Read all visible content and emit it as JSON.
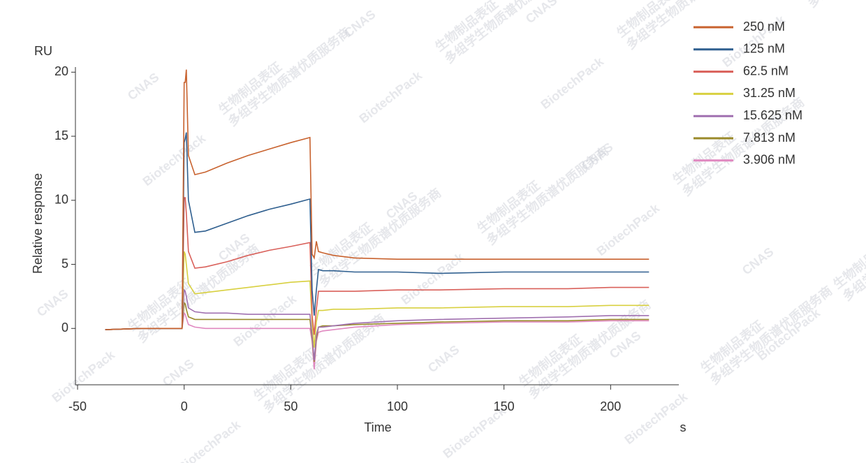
{
  "chart_data": {
    "type": "line",
    "y_unit": "RU",
    "ylabel": "Relative response",
    "xlabel": "Time",
    "x_unit": "s",
    "x": [
      -37,
      -20,
      -1,
      0,
      0.5,
      1,
      2,
      5,
      10,
      20,
      30,
      40,
      50,
      59,
      60,
      61,
      62,
      63,
      65,
      70,
      80,
      100,
      120,
      150,
      180,
      200,
      218
    ],
    "series": [
      {
        "name": "250 nM",
        "color": "#c8622e",
        "values": [
          -0.1,
          0,
          0,
          19.2,
          19.2,
          20.2,
          13.5,
          12.0,
          12.2,
          12.9,
          13.5,
          14.0,
          14.5,
          14.9,
          5.8,
          5.5,
          6.8,
          6.0,
          5.9,
          5.7,
          5.5,
          5.4,
          5.4,
          5.4,
          5.4,
          5.4,
          5.4
        ]
      },
      {
        "name": "125 nM",
        "color": "#2f5f8f",
        "values": [
          -0.1,
          0,
          0,
          14.5,
          14.8,
          15.3,
          10,
          7.5,
          7.6,
          8.2,
          8.8,
          9.3,
          9.7,
          10.1,
          3,
          1.0,
          3.0,
          4.6,
          4.5,
          4.5,
          4.4,
          4.4,
          4.3,
          4.4,
          4.4,
          4.4,
          4.4
        ]
      },
      {
        "name": "62.5 nM",
        "color": "#d9605a",
        "values": [
          -0.1,
          0,
          0,
          10.2,
          10.2,
          9,
          6,
          4.7,
          4.8,
          5.2,
          5.7,
          6.1,
          6.4,
          6.7,
          1,
          -0.5,
          1.5,
          2.9,
          2.9,
          2.9,
          2.9,
          3.0,
          3.0,
          3.1,
          3.1,
          3.2,
          3.2
        ]
      },
      {
        "name": "31.25 nM",
        "color": "#d8d040",
        "values": [
          -0.1,
          0,
          0,
          6,
          5.8,
          5,
          3.5,
          2.7,
          2.8,
          3.0,
          3.2,
          3.4,
          3.6,
          3.7,
          0.5,
          -1.5,
          0.5,
          1.4,
          1.4,
          1.5,
          1.5,
          1.6,
          1.6,
          1.7,
          1.7,
          1.8,
          1.8
        ]
      },
      {
        "name": "15.625 nM",
        "color": "#a070b0",
        "values": [
          -0.1,
          0,
          0,
          3,
          2.9,
          2.5,
          1.6,
          1.3,
          1.2,
          1.2,
          1.1,
          1.1,
          1.1,
          1.1,
          -0.5,
          -2.5,
          -0.5,
          0.1,
          0.1,
          0.2,
          0.4,
          0.6,
          0.7,
          0.8,
          0.9,
          1.0,
          1.0
        ]
      },
      {
        "name": "7.813 nM",
        "color": "#9a8a2a",
        "values": [
          -0.1,
          0,
          0,
          2,
          1.9,
          1.5,
          0.9,
          0.7,
          0.7,
          0.7,
          0.7,
          0.7,
          0.7,
          0.7,
          -0.8,
          -2.6,
          -0.8,
          0.1,
          0.2,
          0.2,
          0.3,
          0.4,
          0.5,
          0.6,
          0.6,
          0.7,
          0.7
        ]
      },
      {
        "name": "3.906 nM",
        "color": "#e088c0",
        "values": [
          -0.1,
          0,
          0,
          1.2,
          1.1,
          0.8,
          0.3,
          0.1,
          0,
          0,
          0,
          0,
          0,
          0,
          -1,
          -3.2,
          -1,
          -0.3,
          -0.2,
          -0.1,
          0.1,
          0.3,
          0.4,
          0.5,
          0.5,
          0.6,
          0.6
        ]
      }
    ],
    "xlim": [
      -51,
      232
    ],
    "xticks": [
      -50,
      0,
      50,
      100,
      150,
      200
    ],
    "ylim": [
      -4.4,
      20.4
    ],
    "yticks": [
      0,
      5,
      10,
      15,
      20
    ],
    "legend": "top-right",
    "watermark": [
      "BiotechPack",
      "生物制品表征",
      "多组学生物质谱优质服务商",
      "CNAS"
    ]
  }
}
